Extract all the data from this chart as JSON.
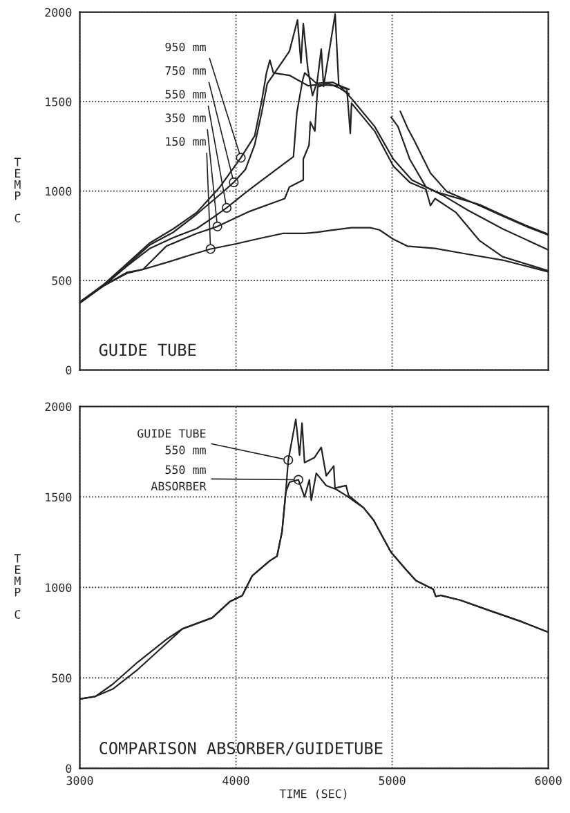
{
  "chart_data": [
    {
      "type": "line",
      "ylabel": "TEMP C",
      "xlim": [
        3000,
        6000
      ],
      "xticks": [
        3000,
        4000,
        5000,
        6000
      ],
      "ylim": [
        0,
        2000
      ],
      "yticks": [
        0,
        500,
        1000,
        1500,
        2000
      ],
      "grid": true,
      "tick_labels": "y",
      "line_style": "solid",
      "marker": "none",
      "series": [
        {
          "color": "#222222",
          "x": [
            3000,
            3152,
            3301,
            3405,
            3554,
            3700,
            3837,
            4000,
            4150,
            4299,
            4442,
            4523,
            4600,
            4740,
            4859,
            4918,
            5007,
            5097,
            5275,
            5484,
            5707,
            5997
          ],
          "values": [
            373,
            470,
            540,
            562,
            600,
            640,
            676,
            705,
            735,
            763,
            763,
            770,
            780,
            795,
            795,
            783,
            731,
            692,
            679,
            647,
            614,
            549
          ]
        },
        {
          "color": "#222222",
          "x": [
            3000,
            3152,
            3301,
            3405,
            3554,
            3748,
            3881,
            4089,
            4312,
            4342,
            4431,
            4431,
            4468,
            4476,
            4505,
            4523,
            4591,
            4665,
            4724,
            4860,
            4993,
            5037,
            5112,
            5216,
            5300,
            5400,
            5558,
            5707,
            5850,
            5997
          ],
          "values": [
            380,
            470,
            545,
            562,
            692,
            763,
            802,
            887,
            958,
            1023,
            1062,
            1179,
            1257,
            1387,
            1335,
            1582,
            1602,
            1575,
            1543,
            null,
            1413,
            1361,
            1179,
            1023,
            990,
            965,
            925,
            865,
            810,
            760
          ]
        },
        {
          "color": "#222222",
          "x": [
            3000,
            3152,
            3301,
            3450,
            3599,
            3748,
            3850,
            3940,
            4060,
            4150,
            4308,
            4368,
            4390,
            4427,
            4440,
            4516,
            4621,
            4710,
            4732,
            4740,
            4814,
            4888,
            5007,
            5112,
            5216,
            5245,
            5275,
            5409,
            5558,
            5707,
            5997
          ],
          "values": [
            380,
            470,
            580,
            680,
            740,
            790,
            850,
            906,
            990,
            1050,
            1153,
            1192,
            1439,
            1621,
            1660,
            1602,
            1608,
            1569,
            1322,
            1491,
            1413,
            1335,
            1140,
            1049,
            1010,
            919,
            958,
            880,
            724,
            633,
            555
          ]
        },
        {
          "color": "#222222",
          "x": [
            3000,
            3152,
            3301,
            3450,
            3599,
            3748,
            3897,
            3986,
            4060,
            4120,
            4165,
            4200,
            4342,
            4394,
            4416,
            4431,
            4461,
            4490,
            4520,
            4546,
            4561,
            4635,
            4658,
            4740,
            4888,
            5007,
            5126,
            5245,
            5335,
            5484,
            5707,
            5997
          ],
          "values": [
            380,
            470,
            585,
            700,
            770,
            870,
            980,
            1049,
            1120,
            1260,
            1440,
            1600,
            1781,
            1957,
            1716,
            1936,
            1677,
            1534,
            1612,
            1794,
            1585,
            1990,
            1595,
            1517,
            1361,
            1179,
            1062,
            1010,
            971,
            893,
            789,
            672
          ]
        },
        {
          "color": "#222222",
          "x": [
            3000,
            3152,
            3301,
            3450,
            3599,
            3748,
            3897,
            4031,
            4120,
            4165,
            4195,
            4217,
            4240,
            4342,
            4461,
            4516,
            4665,
            4724,
            4900,
            5052,
            5100,
            5141,
            5245,
            5350,
            5450,
            5558,
            5707,
            5850,
            5997
          ],
          "values": [
            380,
            477,
            594,
            711,
            789,
            880,
            1023,
            1186,
            1309,
            1504,
            1660,
            1732,
            1660,
            1647,
            1589,
            1595,
            1589,
            1569,
            null,
            1446,
            1350,
            1283,
            1101,
            997,
            960,
            919,
            860,
            805,
            755
          ]
        }
      ],
      "annotations": [
        {
          "text": "950 mm",
          "x": 4031,
          "y": 1186
        },
        {
          "text": "750 mm",
          "x": 3986,
          "y": 1049
        },
        {
          "text": "550 mm",
          "x": 3940,
          "y": 906
        },
        {
          "text": "350 mm",
          "x": 3881,
          "y": 802
        },
        {
          "text": "150 mm",
          "x": 3837,
          "y": 676
        },
        "GUIDE TUBE"
      ]
    },
    {
      "type": "line",
      "xlabel": "TIME (SEC)",
      "ylabel": "TEMP C",
      "xlim": [
        3000,
        6000
      ],
      "xticks": [
        3000,
        4000,
        5000,
        6000
      ],
      "ylim": [
        0,
        2000
      ],
      "yticks": [
        0,
        500,
        1000,
        1500,
        2000
      ],
      "grid": true,
      "line_style": "solid",
      "marker": "none",
      "series": [
        {
          "color": "#222222",
          "x": [
            3000,
            3099,
            3211,
            3371,
            3562,
            3657,
            3848,
            3960,
            4040,
            4104,
            4215,
            4263,
            4295,
            4319,
            4335,
            4383,
            4407,
            4423,
            4439,
            4502,
            4546,
            4578,
            4626,
            4634,
            4705,
            4721,
            4817,
            4881,
            4992,
            5088,
            5152,
            5263,
            5279,
            5311,
            5438,
            5614,
            5821,
            6000
          ],
          "values": [
            383,
            397,
            465,
            587,
            717,
            771,
            832,
            921,
            955,
            1064,
            1146,
            1173,
            1309,
            1527,
            1704,
            1929,
            1731,
            1908,
            1690,
            1717,
            1774,
            1617,
            1671,
            1549,
            1563,
            1508,
            1440,
            1372,
            1195,
            1099,
            1038,
            990,
            950,
            956,
            929,
            875,
            813,
            752
          ]
        },
        {
          "color": "#222222",
          "x": [
            3000,
            3099,
            3211,
            3371,
            3562,
            3657,
            3848,
            3960,
            4040,
            4104,
            4215,
            4263,
            4295,
            4319,
            4343,
            4400,
            4439,
            4470,
            4482,
            4514,
            4578,
            4642,
            4705,
            4817,
            4881,
            4992,
            5088,
            5152,
            5263,
            5279,
            5311,
            5438,
            5614,
            5821,
            6000
          ],
          "values": [
            383,
            397,
            438,
            546,
            696,
            771,
            832,
            921,
            955,
            1064,
            1146,
            1173,
            1309,
            1527,
            1582,
            1595,
            1500,
            1595,
            1481,
            1631,
            1563,
            1542,
            1508,
            1440,
            1372,
            1195,
            1099,
            1038,
            990,
            950,
            956,
            929,
            875,
            813,
            752
          ]
        }
      ],
      "annotations": [
        {
          "text": "GUIDE TUBE\n550 mm",
          "x": 4335,
          "y": 1704
        },
        {
          "text": "550 mm\nABSORBER",
          "x": 4400,
          "y": 1595
        },
        "COMPARISON ABSORBER/GUIDETUBE"
      ]
    }
  ]
}
